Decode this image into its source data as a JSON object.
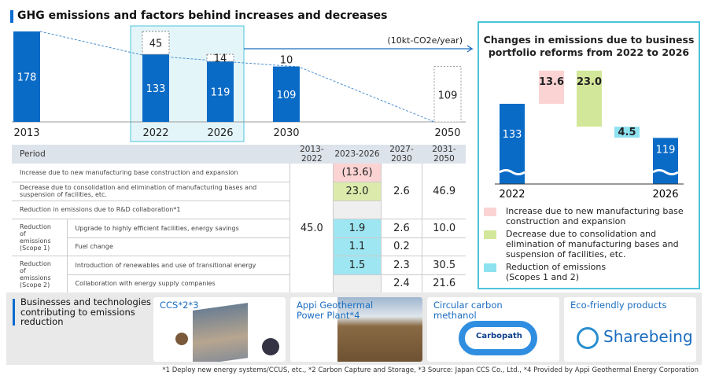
{
  "title": "GHG emissions and factors behind increases and decreases",
  "chart_data": [
    {
      "type": "bar",
      "unit": "(10kt-CO2e/year)",
      "categories": [
        "2013",
        "2022",
        "2026",
        "2030",
        "2050"
      ],
      "values": [
        178,
        133,
        119,
        109,
        109
      ],
      "reductions": {
        "2022": 45,
        "2026": 14,
        "2030": 10
      },
      "highlight": [
        "2022",
        "2026"
      ],
      "target_dashed": [
        "2050"
      ]
    },
    {
      "type": "bar",
      "title": "Changes in emissions due to business portfolio reforms from 2022 to 2026",
      "categories": [
        "2022",
        "2026"
      ],
      "start": 133,
      "end": 119,
      "steps": [
        {
          "label": "13.6",
          "value": 13.6,
          "kind": "increase"
        },
        {
          "label": "23.0",
          "value": -23.0,
          "kind": "decrease"
        },
        {
          "label": "4.5",
          "value": -4.5,
          "kind": "reduction"
        }
      ],
      "legend": [
        "Increase due to new manufacturing base construction and expansion",
        "Decrease due to consolidation and elimination of manufacturing bases and suspension of facilities, etc.",
        "Reduction of emissions (Scopes 1 and 2)"
      ],
      "colors": {
        "bar": "#0a6bc6",
        "increase": "#fbd3d3",
        "decrease": "#d3e79a",
        "reduction": "#8ee2f0"
      }
    }
  ],
  "table": {
    "headers": [
      "Period",
      "2013-2022",
      "2023-2026",
      "2027-2030",
      "2031-2050"
    ],
    "rows": [
      "Increase due to new manufacturing base construction and expansion",
      "Decrease due to consolidation and elimination of manufacturing bases and suspension of facilities, etc.",
      "Reduction in emissions due to R&D collaboration*1"
    ],
    "scope1": "Reduction of emissions (Scope 1)",
    "scope2": "Reduction of emissions (Scope 2)",
    "s1": [
      "Upgrade to highly efficient facilities, energy savings",
      "Fuel change"
    ],
    "s2": [
      "Introduction of renewables and use of transitional energy",
      "Collaboration with energy supply companies"
    ],
    "v": {
      "a": "45.0",
      "inc": "(13.6)",
      "dec": "23.0",
      "c1": "2.6",
      "d1": "46.9",
      "b1": "1.9",
      "b2": "1.1",
      "b3": "1.5",
      "c2": "2.6",
      "c3": "0.2",
      "c4": "2.3",
      "c5": "2.4",
      "d2": "10.0",
      "d3": "30.5",
      "d4": "21.6"
    }
  },
  "bottom": {
    "heading": "Businesses and technologies contributing to emissions reduction",
    "cards": [
      "CCS*2*3",
      "Appi Geothermal Power Plant*4",
      "Circular carbon methanol",
      "Eco-friendly products"
    ],
    "logo": "Sharebeing",
    "carbopath": "Carbopath"
  },
  "footnote": "*1 Deploy new energy systems/CCUS, etc., *2 Carbon Capture and Storage, *3 Source: Japan CCS Co., Ltd., *4 Provided by Appi Geothermal Energy Corporation"
}
